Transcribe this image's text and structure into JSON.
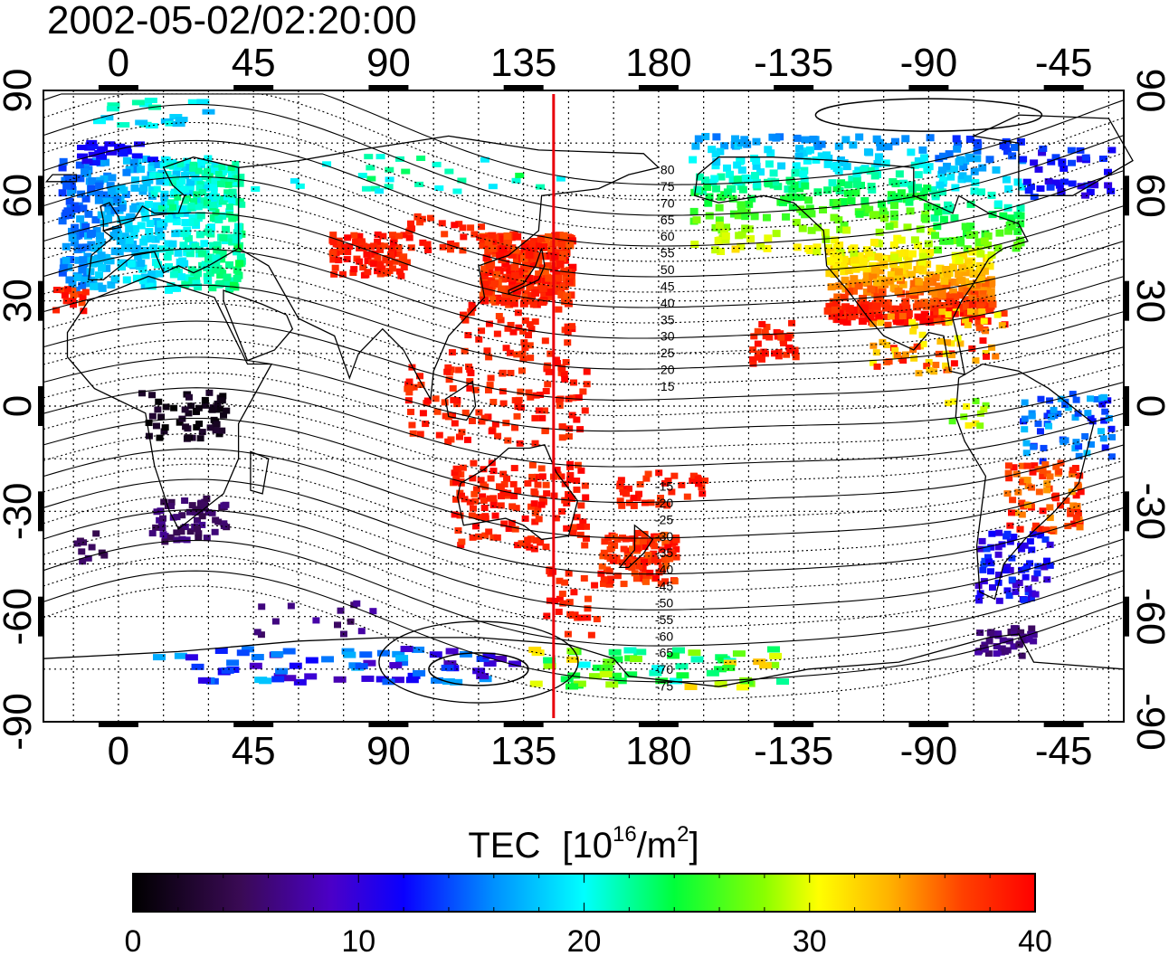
{
  "title": "2002-05-02/02:20:00",
  "colorbar": {
    "label_main": "TEC",
    "label_unit_pre": "[10",
    "label_unit_exp": "16",
    "label_unit_mid": "/m",
    "label_unit_exp2": "2",
    "label_unit_post": "]",
    "ticks": [
      "0",
      "10",
      "20",
      "30",
      "40"
    ],
    "range": [
      0,
      40
    ]
  },
  "axes": {
    "x_ticks": [
      "0",
      "45",
      "90",
      "135",
      "180",
      "-135",
      "-90",
      "-45"
    ],
    "x_tick_lon": [
      0,
      45,
      90,
      135,
      180,
      225,
      270,
      315
    ],
    "y_ticks": [
      "90",
      "60",
      "30",
      "0",
      "-30",
      "-60",
      "-90"
    ],
    "y_tick_lat": [
      90,
      60,
      30,
      0,
      -30,
      -60,
      -90
    ],
    "lon_range": [
      -25,
      335
    ],
    "lat_range": [
      -90,
      90
    ]
  },
  "magnetic_lat_labels": {
    "north": [
      "80",
      "75",
      "70",
      "65",
      "60",
      "55",
      "50",
      "45",
      "40",
      "35",
      "30",
      "25",
      "20",
      "15"
    ],
    "north_lat": [
      80,
      75,
      70,
      65,
      60,
      55,
      50,
      45,
      40,
      35,
      30,
      25,
      20,
      15
    ],
    "south": [
      "-15",
      "-20",
      "-25",
      "-30",
      "-35",
      "-40",
      "-45",
      "-50",
      "-55",
      "-60",
      "-65",
      "-70",
      "-75"
    ],
    "south_lat": [
      -15,
      -20,
      -25,
      -30,
      -35,
      -40,
      -45,
      -50,
      -55,
      -60,
      -65,
      -70,
      -75
    ]
  },
  "marker_lon": 145,
  "colors": {
    "marker": "#e8000b"
  }
}
